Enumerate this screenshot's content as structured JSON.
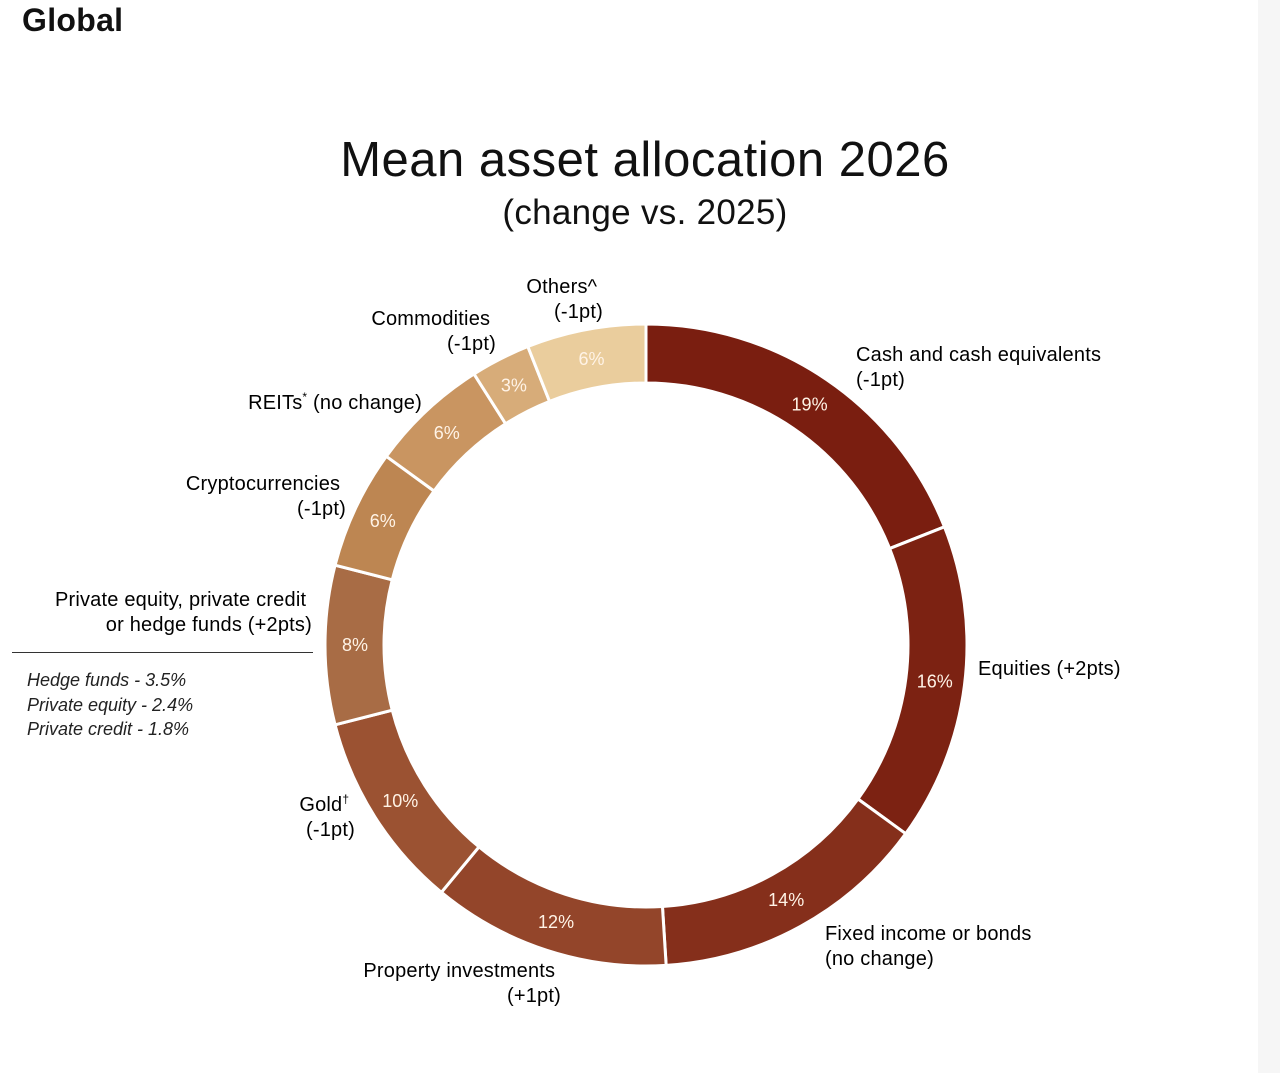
{
  "page_label": "Global",
  "chart_data": {
    "type": "pie",
    "title": "Mean asset allocation 2026",
    "subtitle": "(change vs. 2025)",
    "unit": "%",
    "slices": [
      {
        "name": "Cash and cash equivalents",
        "change": "(-1pt)",
        "value": 19,
        "value_label": "19%",
        "color": "#7a1e10"
      },
      {
        "name": "Equities",
        "change": "(+2pts)",
        "value": 16,
        "value_label": "16%",
        "color": "#7c2212"
      },
      {
        "name": "Fixed income or bonds",
        "change": "(no change)",
        "value": 14,
        "value_label": "14%",
        "color": "#852f1b"
      },
      {
        "name": "Property investments",
        "change": "(+1pt)",
        "value": 12,
        "value_label": "12%",
        "color": "#93452a"
      },
      {
        "name": "Gold",
        "mark": "†",
        "change": "(-1pt)",
        "value": 10,
        "value_label": "10%",
        "color": "#9b5232"
      },
      {
        "name": "Private equity, private credit or hedge funds",
        "change": "(+2pts)",
        "value": 8,
        "value_label": "8%",
        "color": "#a86c45"
      },
      {
        "name": "Cryptocurrencies",
        "change": "(-1pt)",
        "value": 6,
        "value_label": "6%",
        "color": "#bd8652"
      },
      {
        "name": "REITs",
        "mark": "*",
        "change": "(no change)",
        "value": 6,
        "value_label": "6%",
        "color": "#c99561"
      },
      {
        "name": "Commodities",
        "change": "(-1pt)",
        "value": 3,
        "value_label": "3%",
        "color": "#d7ac79"
      },
      {
        "name": "Others",
        "mark": "^",
        "change": "(-1pt)",
        "value": 6,
        "value_label": "6%",
        "color": "#eacd9d"
      }
    ],
    "labels": {
      "cash": [
        "Cash and cash equivalents",
        "(-1pt)"
      ],
      "equities": [
        "Equities (+2pts)"
      ],
      "fixed_income": [
        "Fixed income or bonds",
        "(no change)"
      ],
      "property": [
        "Property investments",
        "(+1pt)"
      ],
      "gold": [
        "Gold",
        "(-1pt)"
      ],
      "private": [
        "Private equity, private credit",
        "or hedge funds (+2pts)"
      ],
      "crypto": [
        "Cryptocurrencies",
        "(-1pt)"
      ],
      "reits": [
        "REITs",
        "(no change)"
      ],
      "commodities": [
        "Commodities",
        "(-1pt)"
      ],
      "others": [
        "Others^",
        "(-1pt)"
      ]
    },
    "breakdown": [
      "Hedge funds - 3.5%",
      "Private equity - 2.4%",
      "Private credit - 1.8%"
    ]
  }
}
